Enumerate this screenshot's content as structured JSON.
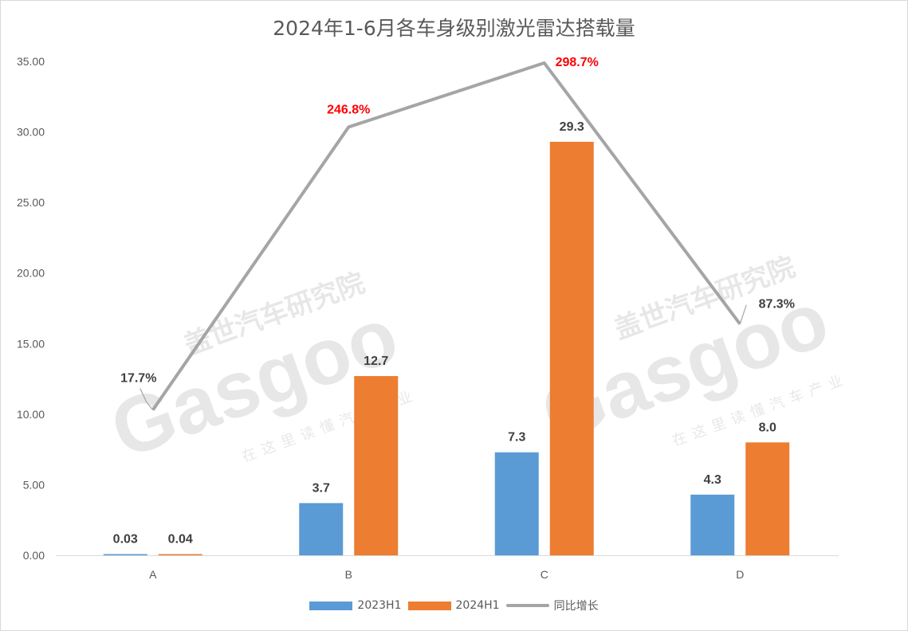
{
  "chart_data": {
    "type": "bar",
    "title": "2024年1-6月各车身级别激光雷达搭载量",
    "categories": [
      "A",
      "B",
      "C",
      "D"
    ],
    "ylim": [
      0,
      35
    ],
    "yticks": [
      "0.00",
      "5.00",
      "10.00",
      "15.00",
      "20.00",
      "25.00",
      "30.00",
      "35.00"
    ],
    "ytick_values": [
      0,
      5,
      10,
      15,
      20,
      25,
      30,
      35
    ],
    "secondary_ylim": [
      -100,
      300
    ],
    "grid": false,
    "legend_position": "bottom",
    "series": [
      {
        "name": "2023H1",
        "type": "bar",
        "axis": "primary",
        "color": "#5b9bd5",
        "values": [
          0.03,
          3.7,
          7.3,
          4.3
        ],
        "labels": [
          "0.03",
          "3.7",
          "7.3",
          "4.3"
        ]
      },
      {
        "name": "2024H1",
        "type": "bar",
        "axis": "primary",
        "color": "#ed7d31",
        "values": [
          0.04,
          12.7,
          29.3,
          8.0
        ],
        "labels": [
          "0.04",
          "12.7",
          "29.3",
          "8.0"
        ]
      },
      {
        "name": "同比增长",
        "type": "line",
        "axis": "secondary",
        "unit": "%",
        "color": "#a5a5a5",
        "values": [
          17.7,
          246.8,
          298.7,
          87.3
        ],
        "labels": [
          "17.7%",
          "246.8%",
          "298.7%",
          "87.3%"
        ],
        "label_colors": [
          "#404040",
          "#ff0000",
          "#ff0000",
          "#404040"
        ]
      }
    ]
  },
  "watermark": {
    "cn": "盖世汽车研究院",
    "brand": "Gasgoo",
    "slogan": "在这里读懂汽车产业"
  }
}
